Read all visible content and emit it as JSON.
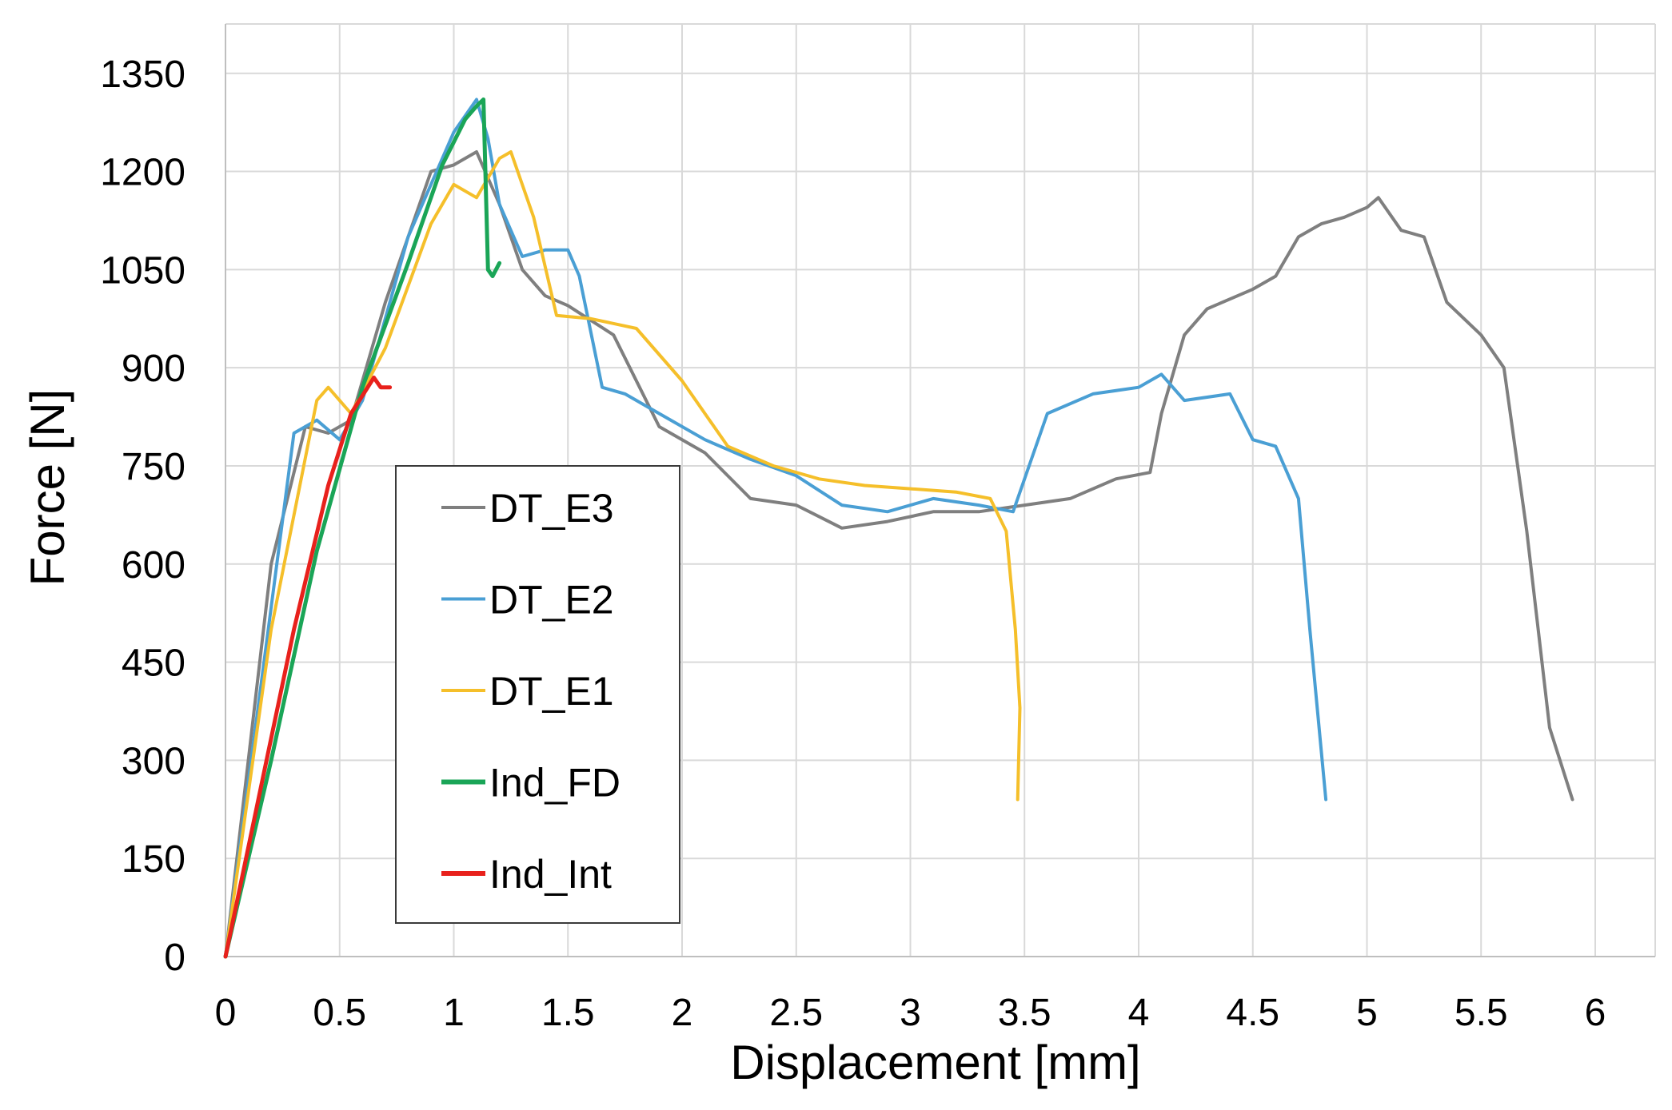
{
  "chart_data": {
    "type": "line",
    "title": "",
    "xlabel": "Displacement [mm]",
    "ylabel": "Force [N]",
    "xlim": [
      0,
      6.25
    ],
    "ylim": [
      0,
      1450
    ],
    "xticks": [
      0,
      0.5,
      1,
      1.5,
      2,
      2.5,
      3,
      3.5,
      4,
      4.5,
      5,
      5.5,
      6
    ],
    "xtick_labels": [
      "0",
      "0.5",
      "1",
      "1.5",
      "2",
      "2.5",
      "3",
      "3.5",
      "4",
      "4.5",
      "5",
      "5.5",
      "6"
    ],
    "yticks": [
      0,
      150,
      300,
      450,
      600,
      750,
      900,
      1050,
      1200,
      1350
    ],
    "ytick_labels": [
      "0",
      "150",
      "300",
      "450",
      "600",
      "750",
      "900",
      "1050",
      "1200",
      "1350"
    ],
    "grid": true,
    "legend_position": "center-left",
    "series": [
      {
        "name": "DT_E3",
        "color": "#7f7f7f",
        "x": [
          0,
          0.2,
          0.35,
          0.45,
          0.55,
          0.7,
          0.9,
          1.0,
          1.1,
          1.2,
          1.3,
          1.4,
          1.5,
          1.7,
          1.9,
          2.1,
          2.3,
          2.5,
          2.7,
          2.9,
          3.1,
          3.3,
          3.5,
          3.7,
          3.9,
          4.05,
          4.1,
          4.2,
          4.3,
          4.5,
          4.6,
          4.7,
          4.8,
          4.9,
          5.0,
          5.05,
          5.15,
          5.25,
          5.35,
          5.5,
          5.6,
          5.7,
          5.8,
          5.9
        ],
        "y": [
          0,
          600,
          810,
          800,
          820,
          1000,
          1200,
          1210,
          1230,
          1150,
          1050,
          1010,
          995,
          950,
          810,
          770,
          700,
          690,
          655,
          665,
          680,
          680,
          690,
          700,
          730,
          740,
          830,
          950,
          990,
          1020,
          1040,
          1100,
          1120,
          1130,
          1145,
          1160,
          1110,
          1100,
          1000,
          950,
          900,
          650,
          350,
          240
        ]
      },
      {
        "name": "DT_E2",
        "color": "#4a9fd4",
        "x": [
          0,
          0.15,
          0.3,
          0.4,
          0.5,
          0.6,
          0.8,
          1.0,
          1.1,
          1.15,
          1.2,
          1.3,
          1.4,
          1.5,
          1.55,
          1.65,
          1.75,
          1.9,
          2.1,
          2.3,
          2.5,
          2.7,
          2.9,
          3.1,
          3.3,
          3.45,
          3.6,
          3.8,
          4.0,
          4.1,
          4.2,
          4.4,
          4.5,
          4.6,
          4.7,
          4.75,
          4.82
        ],
        "y": [
          0,
          400,
          800,
          820,
          790,
          850,
          1100,
          1260,
          1310,
          1250,
          1150,
          1070,
          1080,
          1080,
          1040,
          870,
          860,
          830,
          790,
          760,
          735,
          690,
          680,
          700,
          690,
          680,
          830,
          860,
          870,
          890,
          850,
          860,
          790,
          780,
          700,
          500,
          240
        ]
      },
      {
        "name": "DT_E1",
        "color": "#f5bf2a",
        "x": [
          0,
          0.2,
          0.4,
          0.45,
          0.55,
          0.7,
          0.9,
          1.0,
          1.1,
          1.2,
          1.25,
          1.35,
          1.45,
          1.6,
          1.8,
          2.0,
          2.2,
          2.4,
          2.6,
          2.8,
          3.0,
          3.2,
          3.35,
          3.42,
          3.46,
          3.48,
          3.47
        ],
        "y": [
          0,
          500,
          850,
          870,
          830,
          930,
          1120,
          1180,
          1160,
          1220,
          1230,
          1130,
          980,
          975,
          960,
          880,
          780,
          750,
          730,
          720,
          715,
          710,
          700,
          650,
          500,
          380,
          240
        ]
      },
      {
        "name": "Ind_FD",
        "color": "#1aa557",
        "x": [
          0,
          0.2,
          0.4,
          0.6,
          0.8,
          0.95,
          1.05,
          1.1,
          1.13,
          1.15,
          1.17,
          1.2
        ],
        "y": [
          0,
          300,
          620,
          870,
          1060,
          1210,
          1280,
          1300,
          1310,
          1050,
          1040,
          1060
        ]
      },
      {
        "name": "Ind_Int",
        "color": "#e8211c",
        "x": [
          0,
          0.15,
          0.3,
          0.45,
          0.55,
          0.65,
          0.68,
          0.72
        ],
        "y": [
          0,
          250,
          500,
          720,
          830,
          885,
          870,
          870
        ]
      }
    ]
  }
}
